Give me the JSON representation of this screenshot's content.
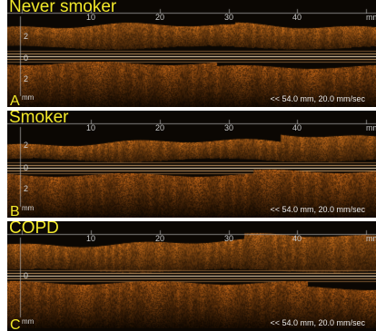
{
  "panels": [
    {
      "title": "Never smoker",
      "letter": "A",
      "depth_labels": [
        "2",
        "0",
        "2"
      ],
      "mm_label": "mm",
      "scale_ticks": [
        "10",
        "20",
        "30",
        "40"
      ],
      "scale_unit": "mm",
      "scan_info": "<< 54.0 mm, 20.0 mm/sec"
    },
    {
      "title": "Smoker",
      "letter": "B",
      "depth_labels": [
        "2",
        "0",
        "2"
      ],
      "mm_label": "mm",
      "scale_ticks": [
        "10",
        "20",
        "30",
        "40"
      ],
      "scale_unit": "mm",
      "scan_info": "<< 54.0 mm, 20.0 mm/sec"
    },
    {
      "title": "COPD",
      "letter": "C",
      "depth_labels": [
        "0"
      ],
      "mm_label": "mm",
      "scale_ticks": [
        "10",
        "20",
        "30",
        "40"
      ],
      "scale_unit": "mm",
      "scan_info": "<< 54.0 mm, 20.0 mm/sec"
    }
  ],
  "colors": {
    "label_yellow": "#f2e82a",
    "tissue_orange": "#c8741c",
    "background": "#0b0703"
  }
}
